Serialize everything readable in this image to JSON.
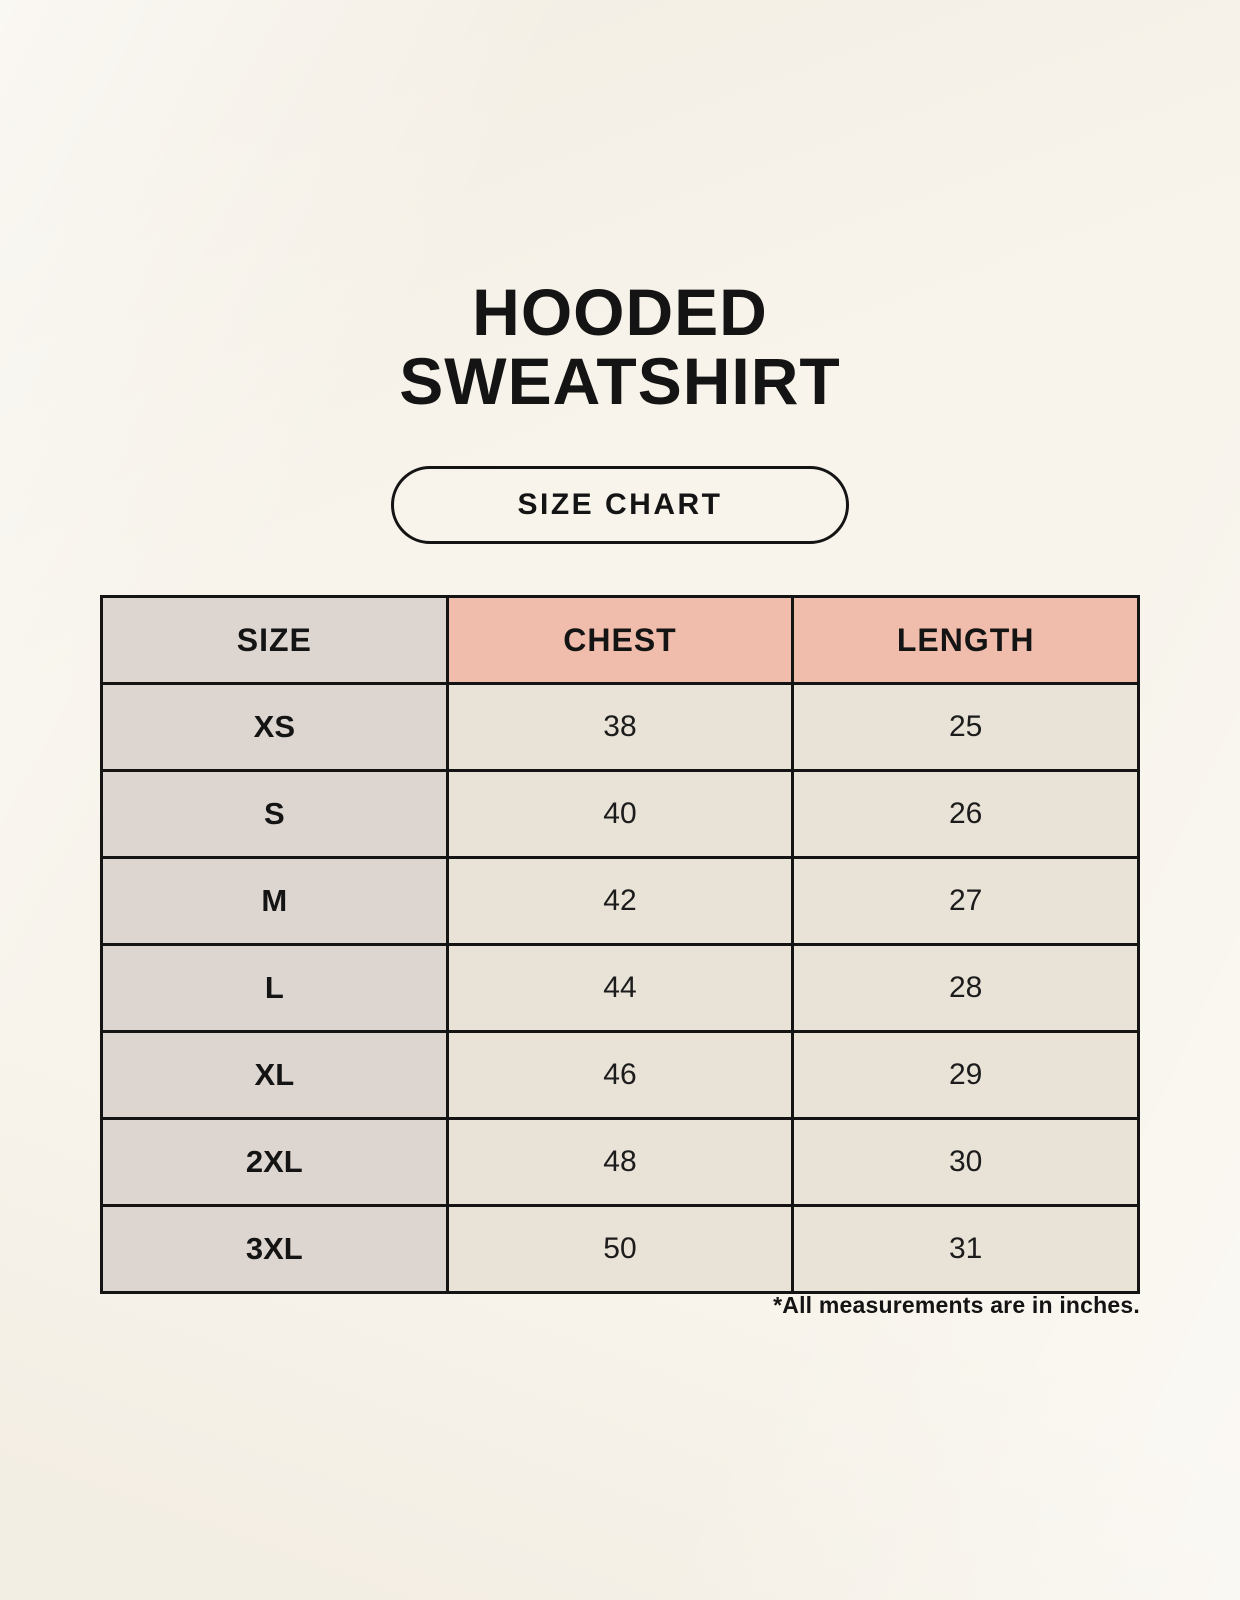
{
  "header": {
    "title_line1": "HOODED",
    "title_line2": "SWEATSHIRT",
    "badge_label": "SIZE CHART"
  },
  "chart_data": {
    "type": "table",
    "title": "HOODED SWEATSHIRT SIZE CHART",
    "columns": [
      "SIZE",
      "CHEST",
      "LENGTH"
    ],
    "rows": [
      [
        "XS",
        "38",
        "25"
      ],
      [
        "S",
        "40",
        "26"
      ],
      [
        "M",
        "42",
        "27"
      ],
      [
        "L",
        "44",
        "28"
      ],
      [
        "XL",
        "46",
        "29"
      ],
      [
        "2XL",
        "48",
        "30"
      ],
      [
        "3XL",
        "50",
        "31"
      ]
    ]
  },
  "footnote": "*All measurements are in inches.",
  "colors": {
    "background": "#f8f4ec",
    "size_column_bg": "#ddd6d0",
    "header_accent_bg": "#f0bcab",
    "data_cell_bg": "#e9e2d7",
    "border": "#141414",
    "text": "#1a1a1a"
  }
}
